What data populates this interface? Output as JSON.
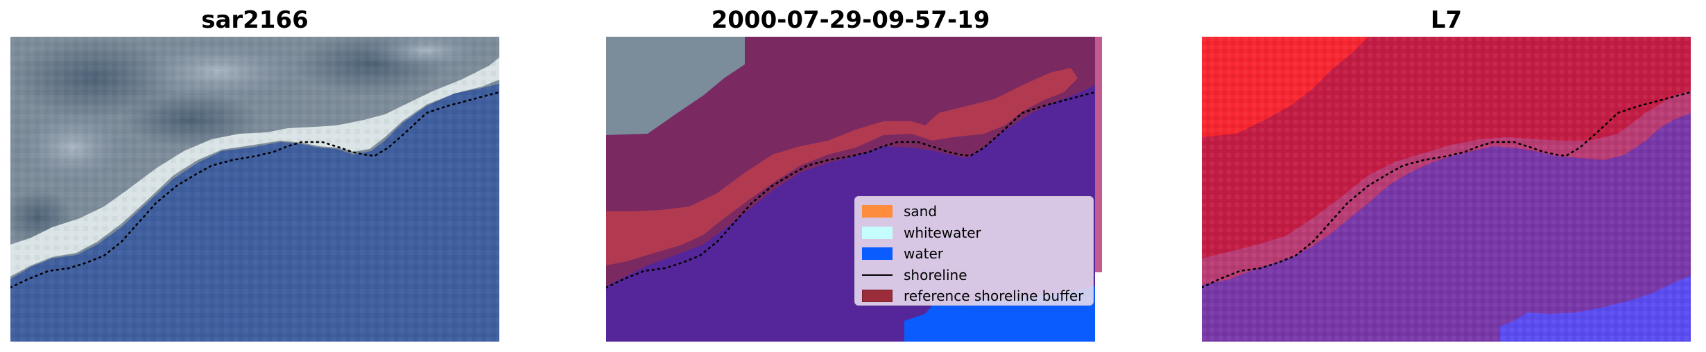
{
  "panels": [
    {
      "title": "sar2166"
    },
    {
      "title": "2000-07-29-09-57-19"
    },
    {
      "title": "L7"
    }
  ],
  "legend": {
    "items": [
      {
        "label": "sand",
        "color": "#fd8d3c",
        "kind": "patch"
      },
      {
        "label": "whitewater",
        "color": "#c5fcfc",
        "kind": "patch"
      },
      {
        "label": "water",
        "color": "#0a5cff",
        "kind": "patch"
      },
      {
        "label": "shoreline",
        "color": "#000000",
        "kind": "line"
      },
      {
        "label": "reference shoreline buffer",
        "color": "#9b2d3b",
        "kind": "patch"
      }
    ]
  },
  "colors": {
    "ocean_rgb": "#4261a0",
    "land_rgb": "#7a8a98",
    "whitewater_rgb": "#e4ecec",
    "class_water": "#55259a",
    "class_buffer": "#7b2a61",
    "class_sand_overlay": "#b23a50",
    "class_pure_water": "#0a5cff",
    "index_land": "#c41a3c",
    "index_high": "#ff2020",
    "index_water": "#7a3aa8",
    "index_pure_water": "#5050ff",
    "shoreline": "#000000"
  }
}
